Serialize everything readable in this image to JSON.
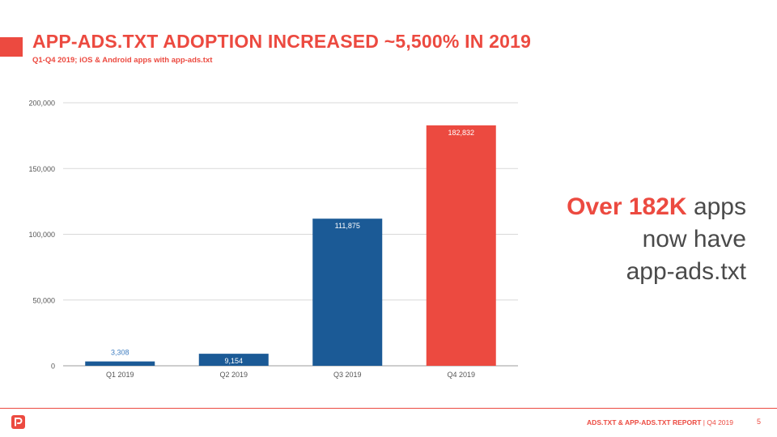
{
  "header": {
    "title": "APP-ADS.TXT ADOPTION INCREASED ~5,500% IN 2019",
    "subtitle": "Q1-Q4 2019; iOS & Android apps with app-ads.txt"
  },
  "callout": {
    "highlight": "Over 182K",
    "rest_1": "apps",
    "line_2": "now have",
    "line_3": "app-ads.txt"
  },
  "footer": {
    "report_name": "ADS.TXT & APP-ADS.TXT REPORT",
    "separator": "|",
    "period": "Q4 2019",
    "page_number": "5",
    "logo": "pixalate-p-logo"
  },
  "colors": {
    "accent": "#ec4a40",
    "bar_blue": "#1b5a96",
    "bar_red": "#ec4a40",
    "label_blue": "#3d7cc0",
    "grid": "#d9d9d9"
  },
  "chart_data": {
    "type": "bar",
    "categories": [
      "Q1 2019",
      "Q2 2019",
      "Q3 2019",
      "Q4 2019"
    ],
    "values": [
      3308,
      9154,
      111875,
      182832
    ],
    "data_labels": [
      "3,308",
      "9,154",
      "111,875",
      "182,832"
    ],
    "bar_colors": [
      "#1b5a96",
      "#1b5a96",
      "#1b5a96",
      "#ec4a40"
    ],
    "label_colors": [
      "#3d7cc0",
      "#ffffff",
      "#ffffff",
      "#ffffff"
    ],
    "label_position": [
      "above",
      "inside",
      "inside",
      "inside"
    ],
    "ylim": [
      0,
      200000
    ],
    "yticks": [
      0,
      50000,
      100000,
      150000,
      200000
    ],
    "ytick_labels": [
      "0",
      "50,000",
      "100,000",
      "150,000",
      "200,000"
    ],
    "xlabel": "",
    "ylabel": "",
    "grid": true,
    "legend": "none"
  }
}
